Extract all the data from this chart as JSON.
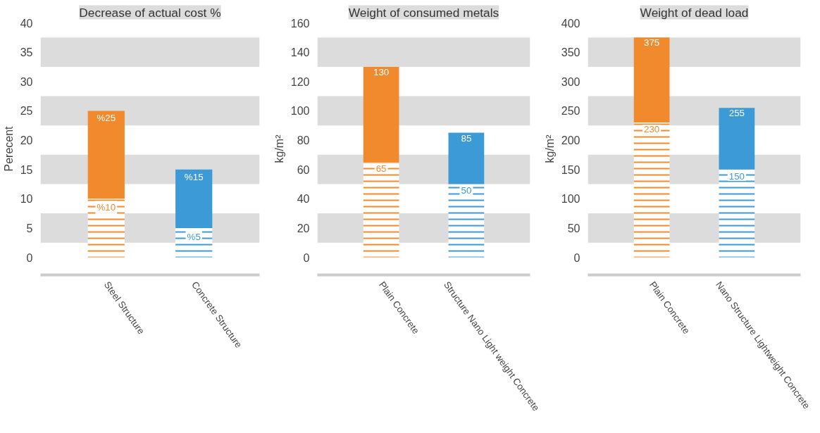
{
  "chart_data": [
    {
      "type": "bar",
      "title": "Decrease of actual cost %",
      "ylabel": "Perecent",
      "categories": [
        "Steel Structure",
        "Concrete Structure"
      ],
      "stacked": true,
      "ylim": [
        -3,
        40
      ],
      "yticks": [
        0,
        5,
        10,
        15,
        20,
        25,
        30,
        35,
        40
      ],
      "grid": false,
      "series": [
        {
          "colors": [
            "#f08a2c",
            "#3c9ad6"
          ],
          "values": [
            10,
            5
          ],
          "value_labels": [
            "%10",
            "%5"
          ]
        },
        {
          "colors": [
            "#f08a2c",
            "#3c9ad6"
          ],
          "values": [
            15,
            10
          ]
        }
      ],
      "totals": [
        "%25",
        "%15"
      ],
      "bands": [
        {
          "axis": "y",
          "from": 2.5,
          "to": 7.5,
          "color": "#dcdcdc"
        },
        {
          "axis": "y",
          "from": 12.5,
          "to": 17.5,
          "color": "#dcdcdc"
        },
        {
          "axis": "y",
          "from": 22.5,
          "to": 27.5,
          "color": "#dcdcdc"
        },
        {
          "axis": "y",
          "from": 32.5,
          "to": 37.5,
          "color": "#dcdcdc"
        }
      ]
    },
    {
      "type": "bar",
      "title": "Weight of consumed metals",
      "ylabel": "kg/m²",
      "categories": [
        "Plain Concrete",
        "Structure Nano Light weight Concrete"
      ],
      "stacked": true,
      "ylim": [
        -12,
        160
      ],
      "yticks": [
        0,
        20,
        40,
        60,
        80,
        100,
        120,
        140,
        160
      ],
      "grid": false,
      "series": [
        {
          "colors": [
            "#f08a2c",
            "#3c9ad6"
          ],
          "values": [
            65,
            50
          ],
          "value_labels": [
            "65",
            "50"
          ]
        },
        {
          "colors": [
            "#f08a2c",
            "#3c9ad6"
          ],
          "values": [
            65,
            35
          ]
        }
      ],
      "totals": [
        "130",
        "85"
      ],
      "bands": [
        {
          "axis": "y",
          "from": 10,
          "to": 30,
          "color": "#dcdcdc"
        },
        {
          "axis": "y",
          "from": 50,
          "to": 70,
          "color": "#dcdcdc"
        },
        {
          "axis": "y",
          "from": 90,
          "to": 110,
          "color": "#dcdcdc"
        },
        {
          "axis": "y",
          "from": 130,
          "to": 150,
          "color": "#dcdcdc"
        }
      ]
    },
    {
      "type": "bar",
      "title": "Weight of dead load",
      "ylabel": "kg/m²",
      "categories": [
        "Plain Concrete",
        "Nano Structure Lightweight Concrete"
      ],
      "stacked": true,
      "ylim": [
        -30,
        400
      ],
      "yticks": [
        0,
        50,
        100,
        150,
        200,
        250,
        300,
        350,
        400
      ],
      "grid": false,
      "series": [
        {
          "colors": [
            "#f08a2c",
            "#3c9ad6"
          ],
          "values": [
            230,
            150
          ],
          "value_labels": [
            "230",
            "150"
          ]
        },
        {
          "colors": [
            "#f08a2c",
            "#3c9ad6"
          ],
          "values": [
            145,
            105
          ]
        }
      ],
      "totals": [
        "375",
        "255"
      ],
      "bands": [
        {
          "axis": "y",
          "from": 25,
          "to": 75,
          "color": "#dcdcdc"
        },
        {
          "axis": "y",
          "from": 125,
          "to": 175,
          "color": "#dcdcdc"
        },
        {
          "axis": "y",
          "from": 225,
          "to": 275,
          "color": "#dcdcdc"
        },
        {
          "axis": "y",
          "from": 325,
          "to": 375,
          "color": "#dcdcdc"
        }
      ]
    }
  ]
}
